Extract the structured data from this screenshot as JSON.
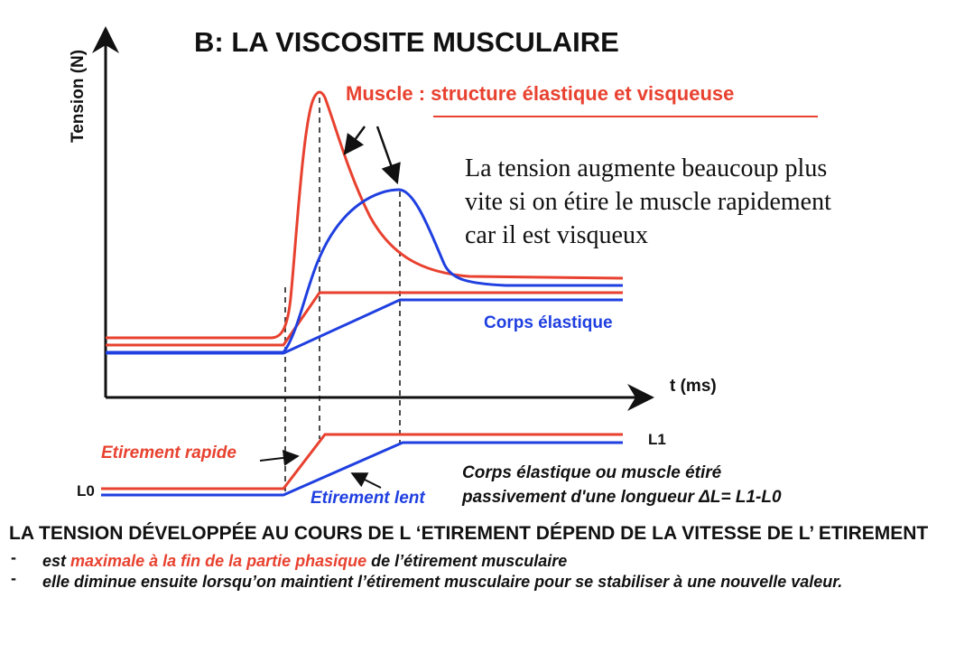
{
  "title": "B: LA VISCOSITE MUSCULAIRE",
  "y_axis_label": "Tension  (N)",
  "x_axis_label": "t (ms)",
  "muscle_label": "Muscle : structure élastique et visqueuse",
  "note_lines": [
    "La tension augmente beaucoup plus",
    "vite si on étire le muscle rapidement",
    "car il est visqueux"
  ],
  "corps_elastique_label": "Corps élastique",
  "lower_panel": {
    "l0_label": "L0",
    "l1_label": "L1",
    "fast_stretch_label": "Etirement rapide",
    "slow_stretch_label": "Etirement lent",
    "description_line1": "Corps élastique ou muscle étiré",
    "description_line2": "passivement  d'une longueur ",
    "description_formula": "ΔL= L1-L0"
  },
  "conclusion": "LA  TENSION  DÉVELOPPÉE  AU COURS DE L ‘ETIREMENT DÉPEND DE  LA VITESSE DE L’ ETIREMENT",
  "bullets": [
    {
      "dash": "-",
      "before": "est ",
      "highlight": "maximale  à la fin de la partie phasique",
      "after": " de l’étirement musculaire"
    },
    {
      "dash": "-",
      "before": "elle diminue ensuite lorsqu’on maintient l’étirement musculaire pour se stabiliser à une nouvelle valeur.",
      "highlight": "",
      "after": ""
    }
  ],
  "colors": {
    "red": "#e8412f",
    "blue": "#1f3fe0",
    "axis": "#111111"
  }
}
